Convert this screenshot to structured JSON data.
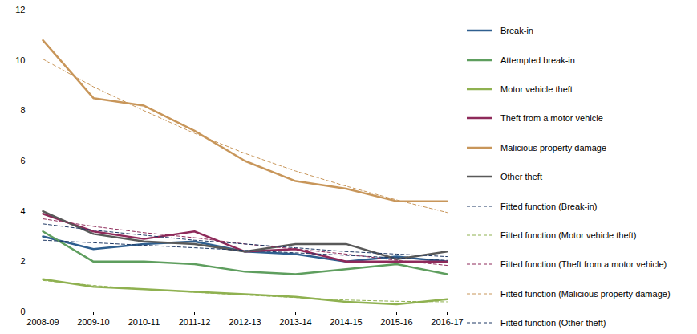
{
  "chart_data": {
    "type": "line",
    "categories": [
      "2008-09",
      "2009-10",
      "2010-11",
      "2011-12",
      "2012-13",
      "2013-14",
      "2014-15",
      "2015-16",
      "2016-17"
    ],
    "ylim": [
      0,
      12
    ],
    "yticks": [
      0,
      2,
      4,
      6,
      8,
      10,
      12
    ],
    "grid": false,
    "legend": "right",
    "series": [
      {
        "name": "Break-in",
        "color": "#2f5f8f",
        "line_style": "solid",
        "values": [
          3.0,
          2.5,
          2.7,
          2.8,
          2.4,
          2.3,
          2.0,
          2.2,
          2.0
        ]
      },
      {
        "name": "Attempted break-in",
        "color": "#5e9e5e",
        "line_style": "solid",
        "values": [
          3.2,
          2.0,
          2.0,
          1.9,
          1.6,
          1.5,
          1.7,
          1.9,
          1.5
        ]
      },
      {
        "name": "Motor vehicle theft",
        "color": "#8fb150",
        "line_style": "solid",
        "values": [
          1.3,
          1.0,
          0.9,
          0.8,
          0.7,
          0.6,
          0.4,
          0.3,
          0.5
        ]
      },
      {
        "name": "Theft from a motor vehicle",
        "color": "#8e2a5a",
        "line_style": "solid",
        "values": [
          3.9,
          3.2,
          2.9,
          3.2,
          2.4,
          2.5,
          2.0,
          2.0,
          2.0
        ]
      },
      {
        "name": "Malicious property damage",
        "color": "#c8965a",
        "line_style": "solid",
        "values": [
          10.8,
          8.5,
          8.2,
          7.2,
          6.0,
          5.2,
          4.9,
          4.4,
          4.4
        ]
      },
      {
        "name": "Other theft",
        "color": "#595959",
        "line_style": "solid",
        "values": [
          4.0,
          3.1,
          2.8,
          2.7,
          2.4,
          2.7,
          2.7,
          2.1,
          2.4
        ]
      },
      {
        "name": "Fitted function (Break-in)",
        "color": "#1f3864",
        "line_style": "dashed",
        "values": [
          2.85,
          2.75,
          2.65,
          2.55,
          2.45,
          2.35,
          2.25,
          2.15,
          2.05
        ]
      },
      {
        "name": "Fitted function (Motor vehicle theft)",
        "color": "#8fb150",
        "line_style": "dashed",
        "values": [
          1.25,
          1.05,
          0.9,
          0.78,
          0.67,
          0.57,
          0.47,
          0.42,
          0.4
        ]
      },
      {
        "name": "Fitted function (Theft from a motor vehicle)",
        "color": "#8e2a5a",
        "line_style": "dashed",
        "values": [
          3.7,
          3.4,
          3.15,
          2.95,
          2.7,
          2.5,
          2.3,
          2.05,
          1.85
        ]
      },
      {
        "name": "Fitted function (Malicious property damage)",
        "color": "#c8965a",
        "line_style": "dashed",
        "values": [
          10.05,
          8.95,
          8.0,
          7.1,
          6.3,
          5.6,
          5.0,
          4.45,
          3.95
        ]
      },
      {
        "name": "Fitted function (Other theft)",
        "color": "#1f3864",
        "line_style": "dashed",
        "values": [
          3.5,
          3.25,
          3.05,
          2.85,
          2.7,
          2.55,
          2.4,
          2.3,
          2.2
        ]
      }
    ]
  }
}
